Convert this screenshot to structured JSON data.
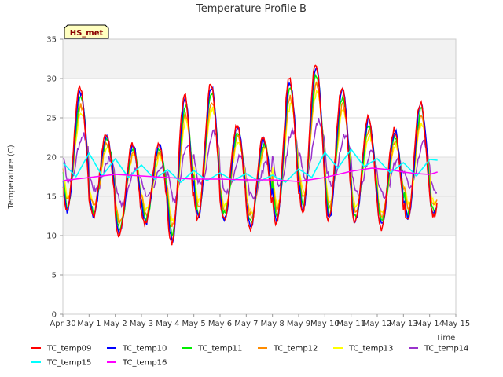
{
  "chart_data": {
    "type": "line",
    "title": "Temperature Profile B",
    "xlabel": "Time",
    "ylabel": "Temperature (C)",
    "badge": "HS_met",
    "ylim": [
      0,
      35
    ],
    "xlim": [
      0,
      15
    ],
    "yticks": [
      0,
      5,
      10,
      15,
      20,
      25,
      30,
      35
    ],
    "xticks": [
      "Apr 30",
      "May 1",
      "May 2",
      "May 3",
      "May 4",
      "May 5",
      "May 6",
      "May 7",
      "May 8",
      "May 9",
      "May 10",
      "May 11",
      "May 12",
      "May 13",
      "May 14",
      "May 15"
    ],
    "shaded_bands": [
      [
        10,
        20
      ],
      [
        30,
        35
      ]
    ],
    "colors": {
      "TC_temp09": "#ff0000",
      "TC_temp10": "#0000ff",
      "TC_temp11": "#00ee00",
      "TC_temp12": "#ff8c00",
      "TC_temp13": "#ffff00",
      "TC_temp14": "#9932cc",
      "TC_temp15": "#00ffff",
      "TC_temp16": "#ff00ff"
    },
    "daily_extremes": [
      {
        "min": 13,
        "max": 28.7
      },
      {
        "min": 12.5,
        "max": 23.0
      },
      {
        "min": 10.0,
        "max": 21.8
      },
      {
        "min": 11.5,
        "max": 21.6
      },
      {
        "min": 9.0,
        "max": 27.8
      },
      {
        "min": 12.0,
        "max": 29.4
      },
      {
        "min": 12.0,
        "max": 24.0
      },
      {
        "min": 11.0,
        "max": 22.5
      },
      {
        "min": 11.5,
        "max": 30.0
      },
      {
        "min": 13.0,
        "max": 32.0
      },
      {
        "min": 12.0,
        "max": 29.0
      },
      {
        "min": 11.5,
        "max": 25.0
      },
      {
        "min": 11.0,
        "max": 23.5
      },
      {
        "min": 12.0,
        "max": 27.0
      },
      {
        "min": 12.5,
        "max": 22.0
      }
    ],
    "series": [
      {
        "name": "TC_temp09"
      },
      {
        "name": "TC_temp10"
      },
      {
        "name": "TC_temp11"
      },
      {
        "name": "TC_temp12"
      },
      {
        "name": "TC_temp13"
      },
      {
        "name": "TC_temp14"
      },
      {
        "name": "TC_temp15",
        "x": [
          0,
          0.5,
          1,
          1.5,
          2,
          2.5,
          3,
          3.5,
          4,
          4.5,
          5,
          5.5,
          6,
          6.5,
          7,
          7.5,
          8,
          8.5,
          9,
          9.5,
          10,
          10.5,
          11,
          11.5,
          12,
          12.5,
          13,
          13.5,
          14,
          14.3
        ],
        "y": [
          19.3,
          17.5,
          20.5,
          17.6,
          19.8,
          17.4,
          19.0,
          17.2,
          18.4,
          16.8,
          18.3,
          17.0,
          18.0,
          17.0,
          17.9,
          16.9,
          17.7,
          16.8,
          18.5,
          17.4,
          20.6,
          18.6,
          21.0,
          18.8,
          19.8,
          18.0,
          19.3,
          17.6,
          19.7,
          19.6
        ]
      },
      {
        "name": "TC_temp16",
        "x": [
          0,
          1,
          2,
          3,
          4,
          5,
          6,
          7,
          8,
          9,
          10,
          11,
          11.8,
          12.5,
          13,
          13.5,
          14,
          14.3
        ],
        "y": [
          17.0,
          17.4,
          17.8,
          17.6,
          17.4,
          17.2,
          17.2,
          17.1,
          17.1,
          16.9,
          17.4,
          18.2,
          18.6,
          18.4,
          18.1,
          17.9,
          17.8,
          18.1
        ]
      }
    ]
  }
}
